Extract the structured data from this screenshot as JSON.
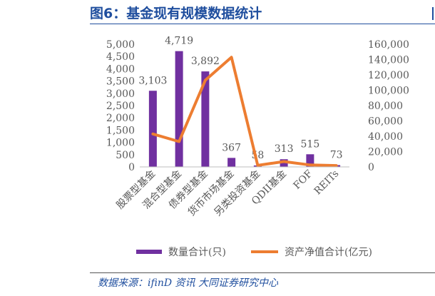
{
  "figure": {
    "title": "图6：基金现有规模数据统计",
    "source": "数据来源：ifinD 资讯  大同证券研究中心"
  },
  "colors": {
    "bar": "#7030a0",
    "line": "#ed7d31",
    "title": "#1f4e9e",
    "axis_text": "#595959"
  },
  "chart_data": {
    "type": "bar",
    "categories": [
      "股票型基金",
      "混合型基金",
      "债券型基金",
      "货币市场基金",
      "另类投资基金",
      "QDII基金",
      "FOF",
      "REITs"
    ],
    "series": [
      {
        "name": "数量合计(只)",
        "type": "bar",
        "axis": "left",
        "values": [
          3103,
          4719,
          3892,
          367,
          58,
          313,
          515,
          73
        ],
        "labels": [
          "3,103",
          "4,719",
          "3,892",
          "367",
          "58",
          "313",
          "515",
          "73"
        ]
      },
      {
        "name": "资产净值合计(亿元)",
        "type": "line",
        "axis": "right",
        "values": [
          43000,
          33000,
          113000,
          143000,
          2000,
          7000,
          2500,
          1800
        ]
      }
    ],
    "y_left": {
      "lim": [
        0,
        5000
      ],
      "ticks": [
        "0",
        "500",
        "1,000",
        "1,500",
        "2,000",
        "2,500",
        "3,000",
        "3,500",
        "4,000",
        "4,500",
        "5,000"
      ]
    },
    "y_right": {
      "lim": [
        0,
        160000
      ],
      "ticks": [
        "0",
        "20,000",
        "40,000",
        "60,000",
        "80,000",
        "100,000",
        "120,000",
        "140,000",
        "160,000"
      ]
    },
    "grid": false,
    "legend": "bottom"
  }
}
